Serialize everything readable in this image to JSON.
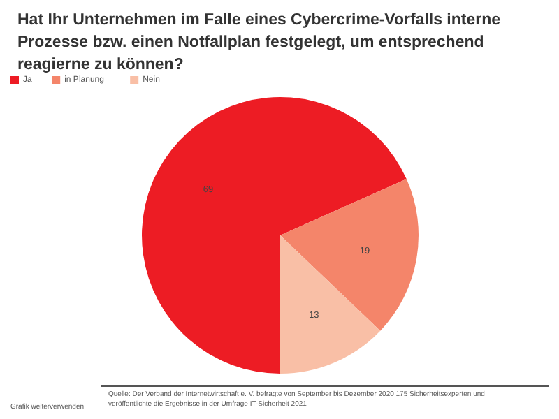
{
  "chart_data": {
    "type": "pie",
    "title": "Hat Ihr Unternehmen im Falle eines Cybercrime-Vorfalls interne Prozesse bzw. einen Notfallplan festgelegt, um entsprechend reagierne zu können?",
    "categories": [
      "Ja",
      "in Planung",
      "Nein"
    ],
    "values": [
      69,
      19,
      13
    ],
    "colors": [
      "#ed1c24",
      "#f4856a",
      "#f9bfa6"
    ],
    "data_labels": true,
    "legend": "top left",
    "annotations": [
      "Grafik weiterverwenden",
      "Quelle: Der Verband der Internetwirtschaft e. V. befragte von September bis Dezember 2020 175 Sicherheitsexperten und veröffentlichte die Ergebnisse in der Umfrage IT-Sicherheit 2021"
    ]
  }
}
